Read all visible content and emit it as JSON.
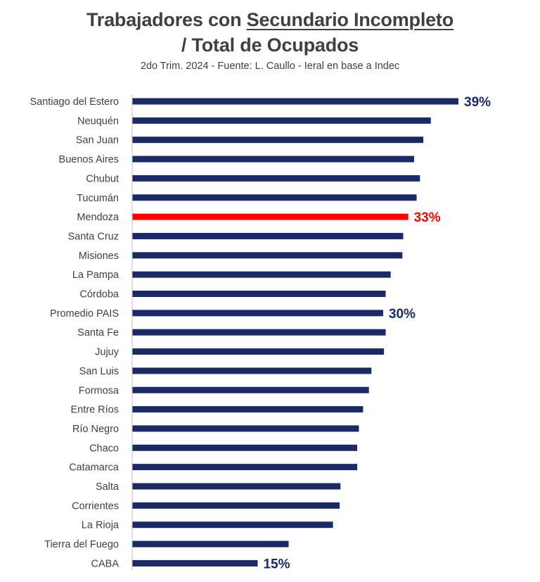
{
  "chart_data": {
    "type": "bar",
    "orientation": "horizontal",
    "title": {
      "prefix": "Trabajadores con ",
      "underlined": "Secundario Incompleto",
      "line2": "/ Total de Ocupados"
    },
    "subtitle": "2do Trim. 2024 - Fuente: L. Caullo - Ieral en base a Indec",
    "xlim": [
      0,
      39
    ],
    "grid": false,
    "legend": "none",
    "colors": {
      "default": "#1a2a66",
      "highlight": "#ff0000",
      "axis": "#bfbfbf"
    },
    "categories": [
      "Santiago del Estero",
      "Neuquén",
      "San Juan",
      "Buenos Aires",
      "Chubut",
      "Tucumán",
      "Mendoza",
      "Santa Cruz",
      "Misiones",
      "La Pampa",
      "Córdoba",
      "Promedio PAIS",
      "Santa Fe",
      "Jujuy",
      "San Luis",
      "Formosa",
      "Entre Ríos",
      "Río Negro",
      "Chaco",
      "Catamarca",
      "Salta",
      "Corrientes",
      "La Rioja",
      "Tierra del Fuego",
      "CABA"
    ],
    "values": [
      39,
      35.7,
      34.8,
      33.7,
      34.4,
      34.0,
      33,
      32.4,
      32.3,
      30.9,
      30.3,
      30,
      30.3,
      30.1,
      28.6,
      28.3,
      27.6,
      27.1,
      26.9,
      26.9,
      24.9,
      24.8,
      24.0,
      18.7,
      15
    ],
    "highlight_index": 6,
    "data_labels": [
      {
        "index": 0,
        "text": "39%",
        "color": "#1a2a66"
      },
      {
        "index": 6,
        "text": "33%",
        "color": "#ff0000"
      },
      {
        "index": 11,
        "text": "30%",
        "color": "#1a2a66"
      },
      {
        "index": 24,
        "text": "15%",
        "color": "#1a2a66"
      }
    ]
  }
}
